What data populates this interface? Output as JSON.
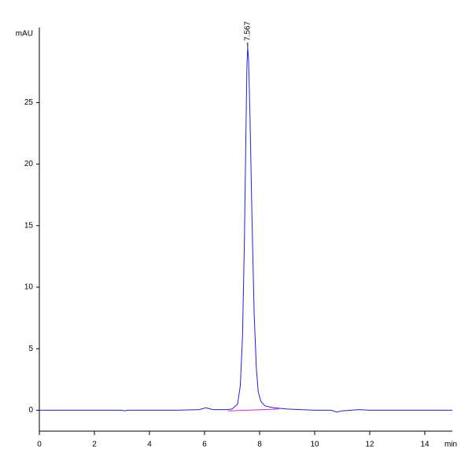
{
  "chart_data": {
    "type": "line",
    "y_label": "mAU",
    "x_label": "min",
    "annotation": {
      "text": "7.567",
      "x": 7.567,
      "y": 29.5
    },
    "series": [
      {
        "color": "#2020e0",
        "x": [
          0,
          1,
          2,
          3,
          3.1,
          3.2,
          5,
          5.8,
          6.05,
          6.3,
          6.8,
          7.0,
          7.2,
          7.3,
          7.38,
          7.45,
          7.5,
          7.54,
          7.567,
          7.6,
          7.65,
          7.72,
          7.8,
          7.88,
          7.95,
          8.05,
          8.2,
          8.5,
          9,
          9.5,
          10,
          10.6,
          10.8,
          11,
          11.6,
          12,
          13,
          14,
          15
        ],
        "values": [
          0,
          0,
          0,
          0,
          -0.05,
          0,
          0,
          0.05,
          0.2,
          0.05,
          0.05,
          0.1,
          0.5,
          2,
          6,
          14,
          22,
          28,
          29.5,
          28.5,
          24,
          16,
          8,
          3.5,
          1.5,
          0.7,
          0.35,
          0.2,
          0.1,
          0.05,
          0,
          0,
          -0.15,
          -0.05,
          0.05,
          0,
          0,
          0,
          0
        ]
      },
      {
        "color": "#e020e0",
        "x": [
          6.85,
          8.7
        ],
        "values": [
          -0.05,
          0.1
        ]
      }
    ],
    "xlim": [
      0,
      15
    ],
    "xticks": [
      0,
      2,
      4,
      6,
      8,
      10,
      12,
      14
    ],
    "ylim": [
      -1.7,
      31.1
    ],
    "yticks": [
      0,
      5,
      10,
      15,
      20,
      25
    ]
  }
}
